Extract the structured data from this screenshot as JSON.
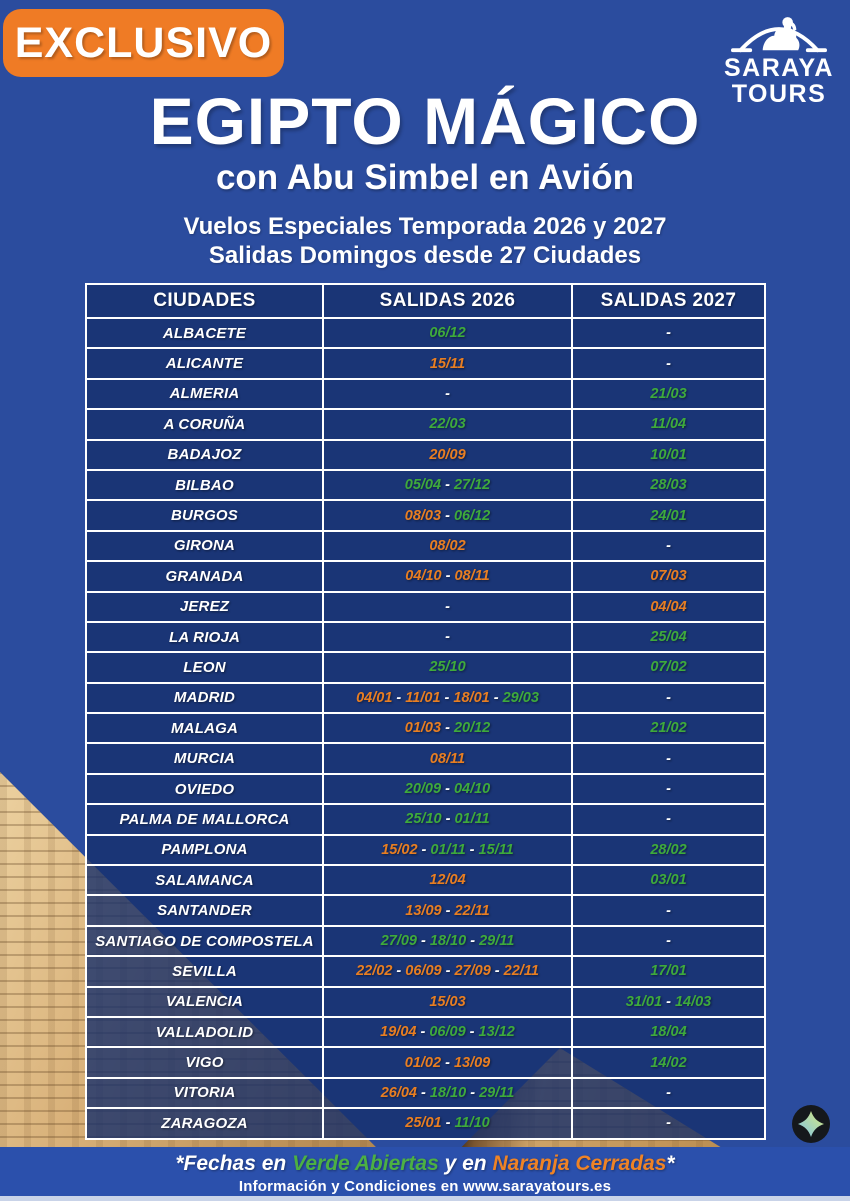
{
  "badge_label": "EXCLUSIVO",
  "logo": {
    "line1": "SARAYA",
    "line2": "TOURS"
  },
  "heading": {
    "title": "EGIPTO MÁGICO",
    "subtitle": "con Abu Simbel en Avión",
    "tagline1": "Vuelos Especiales Temporada 2026 y 2027",
    "tagline2": "Salidas Domingos desde 27 Ciudades"
  },
  "table": {
    "headers": [
      "CIUDADES",
      "SALIDAS 2026",
      "SALIDAS 2027"
    ],
    "separator": " - ",
    "rows": [
      {
        "city": "ALBACETE",
        "d26": [
          [
            "06/12",
            "g"
          ]
        ],
        "d27": [
          [
            "-",
            "w"
          ]
        ]
      },
      {
        "city": "ALICANTE",
        "d26": [
          [
            "15/11",
            "o"
          ]
        ],
        "d27": [
          [
            "-",
            "w"
          ]
        ]
      },
      {
        "city": "ALMERIA",
        "d26": [
          [
            "-",
            "w"
          ]
        ],
        "d27": [
          [
            "21/03",
            "g"
          ]
        ]
      },
      {
        "city": "A CORUÑA",
        "d26": [
          [
            "22/03",
            "g"
          ]
        ],
        "d27": [
          [
            "11/04",
            "g"
          ]
        ]
      },
      {
        "city": "BADAJOZ",
        "d26": [
          [
            "20/09",
            "o"
          ]
        ],
        "d27": [
          [
            "10/01",
            "g"
          ]
        ]
      },
      {
        "city": "BILBAO",
        "d26": [
          [
            "05/04",
            "g"
          ],
          [
            "27/12",
            "g"
          ]
        ],
        "d27": [
          [
            "28/03",
            "g"
          ]
        ]
      },
      {
        "city": "BURGOS",
        "d26": [
          [
            "08/03",
            "o"
          ],
          [
            "06/12",
            "g"
          ]
        ],
        "d27": [
          [
            "24/01",
            "g"
          ]
        ]
      },
      {
        "city": "GIRONA",
        "d26": [
          [
            "08/02",
            "o"
          ]
        ],
        "d27": [
          [
            "-",
            "w"
          ]
        ]
      },
      {
        "city": "GRANADA",
        "d26": [
          [
            "04/10",
            "o"
          ],
          [
            "08/11",
            "o"
          ]
        ],
        "d27": [
          [
            "07/03",
            "o"
          ]
        ]
      },
      {
        "city": "JEREZ",
        "d26": [
          [
            "-",
            "w"
          ]
        ],
        "d27": [
          [
            "04/04",
            "o"
          ]
        ]
      },
      {
        "city": "LA RIOJA",
        "d26": [
          [
            "-",
            "w"
          ]
        ],
        "d27": [
          [
            "25/04",
            "g"
          ]
        ]
      },
      {
        "city": "LEON",
        "d26": [
          [
            "25/10",
            "g"
          ]
        ],
        "d27": [
          [
            "07/02",
            "g"
          ]
        ]
      },
      {
        "city": "MADRID",
        "d26": [
          [
            "04/01",
            "o"
          ],
          [
            "11/01",
            "o"
          ],
          [
            "18/01",
            "o"
          ],
          [
            "29/03",
            "g"
          ]
        ],
        "d27": [
          [
            "-",
            "w"
          ]
        ]
      },
      {
        "city": "MALAGA",
        "d26": [
          [
            "01/03",
            "o"
          ],
          [
            "20/12",
            "g"
          ]
        ],
        "d27": [
          [
            "21/02",
            "g"
          ]
        ]
      },
      {
        "city": "MURCIA",
        "d26": [
          [
            "08/11",
            "o"
          ]
        ],
        "d27": [
          [
            "-",
            "w"
          ]
        ]
      },
      {
        "city": "OVIEDO",
        "d26": [
          [
            "20/09",
            "g"
          ],
          [
            "04/10",
            "g"
          ]
        ],
        "d27": [
          [
            "-",
            "w"
          ]
        ]
      },
      {
        "city": "PALMA DE MALLORCA",
        "d26": [
          [
            "25/10",
            "g"
          ],
          [
            "01/11",
            "g"
          ]
        ],
        "d27": [
          [
            "-",
            "w"
          ]
        ]
      },
      {
        "city": "PAMPLONA",
        "d26": [
          [
            "15/02",
            "o"
          ],
          [
            "01/11",
            "g"
          ],
          [
            "15/11",
            "g"
          ]
        ],
        "d27": [
          [
            "28/02",
            "g"
          ]
        ]
      },
      {
        "city": "SALAMANCA",
        "d26": [
          [
            "12/04",
            "o"
          ]
        ],
        "d27": [
          [
            "03/01",
            "g"
          ]
        ]
      },
      {
        "city": "SANTANDER",
        "d26": [
          [
            "13/09",
            "o"
          ],
          [
            "22/11",
            "o"
          ]
        ],
        "d27": [
          [
            "-",
            "w"
          ]
        ]
      },
      {
        "city": "SANTIAGO DE COMPOSTELA",
        "d26": [
          [
            "27/09",
            "g"
          ],
          [
            "18/10",
            "g"
          ],
          [
            "29/11",
            "g"
          ]
        ],
        "d27": [
          [
            "-",
            "w"
          ]
        ]
      },
      {
        "city": "SEVILLA",
        "d26": [
          [
            "22/02",
            "o"
          ],
          [
            "06/09",
            "o"
          ],
          [
            "27/09",
            "o"
          ],
          [
            "22/11",
            "o"
          ]
        ],
        "d27": [
          [
            "17/01",
            "g"
          ]
        ]
      },
      {
        "city": "VALENCIA",
        "d26": [
          [
            "15/03",
            "o"
          ]
        ],
        "d27": [
          [
            "31/01",
            "g"
          ],
          [
            "14/03",
            "g"
          ]
        ]
      },
      {
        "city": "VALLADOLID",
        "d26": [
          [
            "19/04",
            "o"
          ],
          [
            "06/09",
            "g"
          ],
          [
            "13/12",
            "g"
          ]
        ],
        "d27": [
          [
            "18/04",
            "g"
          ]
        ]
      },
      {
        "city": "VIGO",
        "d26": [
          [
            "01/02",
            "o"
          ],
          [
            "13/09",
            "o"
          ]
        ],
        "d27": [
          [
            "14/02",
            "g"
          ]
        ]
      },
      {
        "city": "VITORIA",
        "d26": [
          [
            "26/04",
            "o"
          ],
          [
            "18/10",
            "g"
          ],
          [
            "29/11",
            "g"
          ]
        ],
        "d27": [
          [
            "-",
            "w"
          ]
        ]
      },
      {
        "city": "ZARAGOZA",
        "d26": [
          [
            "25/01",
            "o"
          ],
          [
            "11/10",
            "g"
          ]
        ],
        "d27": [
          [
            "-",
            "w"
          ]
        ]
      }
    ]
  },
  "footer": {
    "legend_prefix": "*Fechas en ",
    "legend_green": "Verde Abiertas",
    "legend_mid": " y en ",
    "legend_orange": "Naranja Cerradas",
    "legend_suffix": "*",
    "info": "Información y Condiciones en www.sarayatours.es"
  },
  "colors": {
    "background": "#2b4c9e",
    "cell_navy": "#1a3676",
    "badge_orange": "#ef7b25",
    "green": "#3eaa3c",
    "orange": "#e87e22",
    "footer_green": "#4cb043",
    "footer_orange": "#ef8325",
    "footer_bar": "#2b50ac",
    "white": "#ffffff"
  }
}
